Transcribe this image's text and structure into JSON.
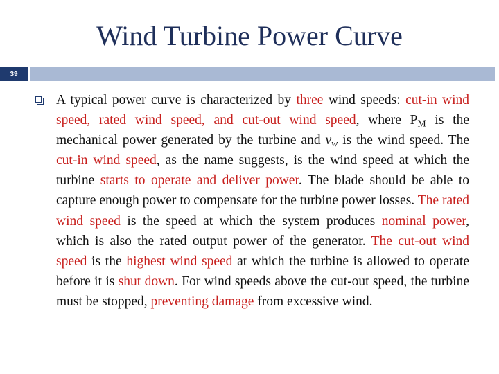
{
  "slide": {
    "title": "Wind Turbine Power Curve",
    "number": "39"
  },
  "paragraph": [
    {
      "t": "A typical power curve is characterized by "
    },
    {
      "t": "three",
      "hl": true
    },
    {
      "t": " wind speeds: "
    },
    {
      "t": "cut-in wind speed, rated wind speed, and cut-out wind speed",
      "hl": true
    },
    {
      "t": ", where P"
    },
    {
      "t": "M",
      "sub": true
    },
    {
      "t": " is the mechanical power generated by the turbine and "
    },
    {
      "t": "v",
      "it": true
    },
    {
      "t": "w",
      "sub": true,
      "it": true
    },
    {
      "t": " is the wind speed. The "
    },
    {
      "t": "cut-in wind speed",
      "hl": true
    },
    {
      "t": ", as the name suggests, is the wind speed at which the turbine "
    },
    {
      "t": "starts to operate and deliver power",
      "hl": true
    },
    {
      "t": ". The blade should be able to capture enough power to compensate for the turbine power losses. "
    },
    {
      "t": "The rated wind speed",
      "hl": true
    },
    {
      "t": " is the speed at which the system produces "
    },
    {
      "t": "nominal power",
      "hl": true
    },
    {
      "t": ", which is also the rated output power of the generator. "
    },
    {
      "t": "The cut-out wind speed",
      "hl": true
    },
    {
      "t": " is the "
    },
    {
      "t": "highest wind speed",
      "hl": true
    },
    {
      "t": " at which the turbine is allowed to operate before it is "
    },
    {
      "t": "shut down",
      "hl": true
    },
    {
      "t": ". For wind speeds above the cut-out speed, the turbine must be stopped, "
    },
    {
      "t": "preventing damage",
      "hl": true
    },
    {
      "t": " from excessive wind."
    }
  ]
}
